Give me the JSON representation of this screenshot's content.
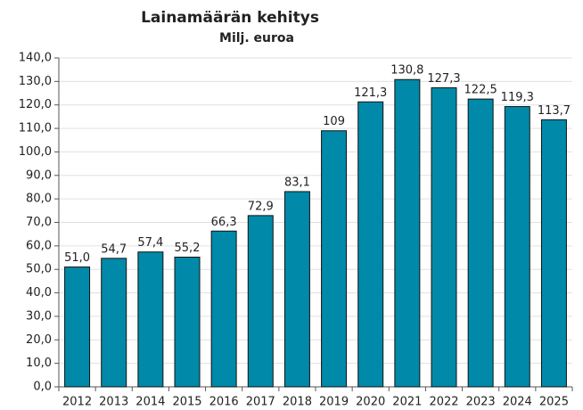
{
  "chart_data": {
    "type": "bar",
    "title": "Lainamäärän kehitys",
    "subtitle": "Milj. euroa",
    "categories": [
      "2012",
      "2013",
      "2014",
      "2015",
      "2016",
      "2017",
      "2018",
      "2019",
      "2020",
      "2021",
      "2022",
      "2023",
      "2024",
      "2025"
    ],
    "values": [
      51.0,
      54.7,
      57.4,
      55.2,
      66.3,
      72.9,
      83.1,
      109,
      121.3,
      130.8,
      127.3,
      122.5,
      119.3,
      113.7
    ],
    "value_labels": [
      "51,0",
      "54,7",
      "57,4",
      "55,2",
      "66,3",
      "72,9",
      "83,1",
      "109",
      "121,3",
      "130,8",
      "127,3",
      "122,5",
      "119,3",
      "113,7"
    ],
    "color": "#0089a8",
    "ylim": [
      0,
      140
    ],
    "yticks": [
      {
        "value": 0,
        "label": "0,0"
      },
      {
        "value": 10,
        "label": "10,0"
      },
      {
        "value": 20,
        "label": "20,0"
      },
      {
        "value": 30,
        "label": "30,0"
      },
      {
        "value": 40,
        "label": "40,0"
      },
      {
        "value": 50,
        "label": "50,0"
      },
      {
        "value": 60,
        "label": "60,0"
      },
      {
        "value": 70,
        "label": "70,0"
      },
      {
        "value": 80,
        "label": "80,0"
      },
      {
        "value": 90,
        "label": "90,0"
      },
      {
        "value": 100,
        "label": "100,0"
      },
      {
        "value": 110,
        "label": "110,0"
      },
      {
        "value": 120,
        "label": "120,0"
      },
      {
        "value": 130,
        "label": "130,0"
      },
      {
        "value": 140,
        "label": "140,0"
      }
    ],
    "grid": true
  }
}
